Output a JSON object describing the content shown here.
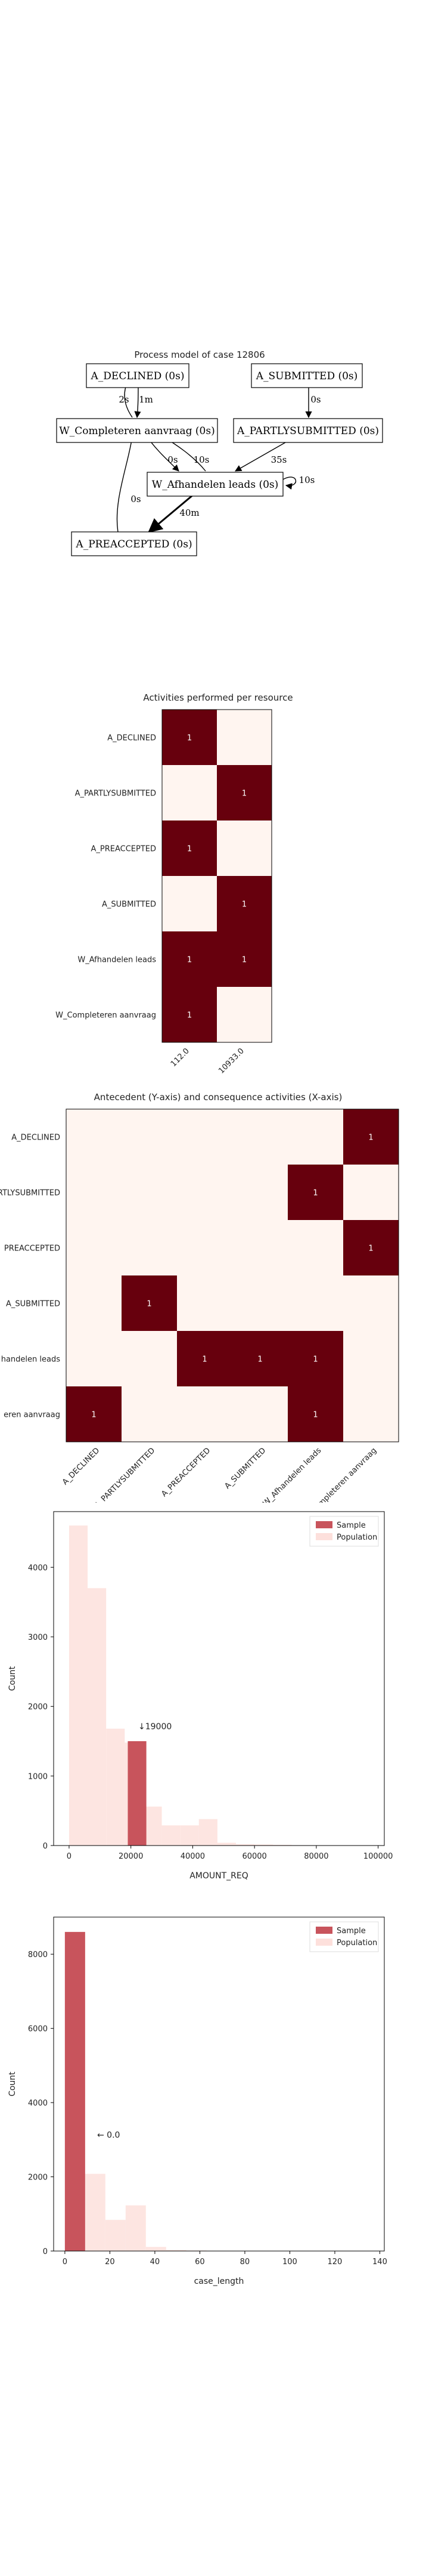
{
  "chart_data": [
    {
      "type": "process-graph",
      "title": "Process model of case 12806",
      "nodes": [
        {
          "id": "declined",
          "label": "A_DECLINED (0s)"
        },
        {
          "id": "submitted",
          "label": "A_SUBMITTED (0s)"
        },
        {
          "id": "completeren",
          "label": "W_Completeren aanvraag (0s)"
        },
        {
          "id": "partly",
          "label": "A_PARTLYSUBMITTED (0s)"
        },
        {
          "id": "afhandelen",
          "label": "W_Afhandelen leads (0s)"
        },
        {
          "id": "preaccepted",
          "label": "A_PREACCEPTED (0s)"
        }
      ],
      "edges": [
        {
          "from": "completeren",
          "to": "declined",
          "label": "2s"
        },
        {
          "from": "declined",
          "to": "completeren",
          "label": "1m"
        },
        {
          "from": "submitted",
          "to": "partly",
          "label": "0s"
        },
        {
          "from": "completeren",
          "to": "afhandelen",
          "label": "0s"
        },
        {
          "from": "afhandelen",
          "to": "completeren",
          "label": "10s"
        },
        {
          "from": "partly",
          "to": "afhandelen",
          "label": "35s"
        },
        {
          "from": "afhandelen",
          "to": "afhandelen",
          "label": "10s"
        },
        {
          "from": "preaccepted",
          "to": "completeren",
          "label": "0s"
        },
        {
          "from": "afhandelen",
          "to": "preaccepted",
          "label": "40m"
        }
      ]
    },
    {
      "type": "heatmap",
      "title": "Activities performed per resource",
      "rows": [
        "A_DECLINED",
        "A_PARTLYSUBMITTED",
        "A_PREACCEPTED",
        "A_SUBMITTED",
        "W_Afhandelen leads",
        "W_Completeren aanvraag"
      ],
      "cols": [
        "112.0",
        "10933.0"
      ],
      "values": [
        [
          1,
          0
        ],
        [
          0,
          1
        ],
        [
          1,
          0
        ],
        [
          0,
          1
        ],
        [
          1,
          1
        ],
        [
          1,
          0
        ]
      ]
    },
    {
      "type": "heatmap",
      "title": "Antecedent (Y-axis) and consequence activities (X-axis)",
      "rows": [
        "A_DECLINED",
        "A_PARTLYSUBMITTED",
        "A_PREACCEPTED",
        "A_SUBMITTED",
        "W_Afhandelen leads",
        "W_Completeren aanvraag"
      ],
      "row_labels_visible": [
        "A_DECLINED",
        "RTLYSUBMITTED",
        "PREACCEPTED",
        "A_SUBMITTED",
        "handelen leads",
        "eren aanvraag"
      ],
      "cols": [
        "A_DECLINED",
        "A_PARTLYSUBMITTED",
        "A_PREACCEPTED",
        "A_SUBMITTED",
        "W_Afhandelen leads",
        "W_Completeren aanvraag"
      ],
      "col_labels_visible": [
        "A_DECLINED",
        "A_PARTLYSUBMITTED",
        "A_PREACCEPTED",
        "A_SUBMITTED",
        "W_Afhandelen leads",
        "Completeren aanvraag"
      ],
      "values": [
        [
          0,
          0,
          0,
          0,
          0,
          1
        ],
        [
          0,
          0,
          0,
          0,
          1,
          0
        ],
        [
          0,
          0,
          0,
          0,
          0,
          1
        ],
        [
          0,
          1,
          0,
          0,
          0,
          0
        ],
        [
          0,
          0,
          1,
          1,
          1,
          0
        ],
        [
          1,
          0,
          0,
          0,
          1,
          0
        ]
      ]
    },
    {
      "type": "bar",
      "xlabel": "AMOUNT_REQ",
      "ylabel": "Count",
      "xlim": [
        -5000,
        102000
      ],
      "ylim": [
        0,
        4800
      ],
      "xticks": [
        "0",
        "20000",
        "40000",
        "60000",
        "80000",
        "100000"
      ],
      "xtick_values": [
        0,
        20000,
        40000,
        60000,
        80000,
        100000
      ],
      "yticks": [
        "0",
        "1000",
        "2000",
        "3000",
        "4000"
      ],
      "ytick_values": [
        0,
        1000,
        2000,
        3000,
        4000
      ],
      "legend": [
        "Sample",
        "Population"
      ],
      "legend_position": "top-right",
      "bin_width": 6000,
      "population": [
        {
          "x0": 0,
          "count": 4600
        },
        {
          "x0": 6000,
          "count": 3700
        },
        {
          "x0": 12000,
          "count": 1680
        },
        {
          "x0": 18000,
          "count": 1480
        },
        {
          "x0": 24000,
          "count": 560
        },
        {
          "x0": 30000,
          "count": 290
        },
        {
          "x0": 36000,
          "count": 290
        },
        {
          "x0": 42000,
          "count": 380
        },
        {
          "x0": 48000,
          "count": 40
        },
        {
          "x0": 54000,
          "count": 20
        },
        {
          "x0": 60000,
          "count": 15
        },
        {
          "x0": 66000,
          "count": 10
        },
        {
          "x0": 72000,
          "count": 5
        }
      ],
      "sample": [
        {
          "x0": 19000,
          "x1": 25000,
          "count": 1500
        }
      ],
      "annotation": {
        "text": "↓19000",
        "x": 19000
      }
    },
    {
      "type": "bar",
      "xlabel": "case_length",
      "ylabel": "Count",
      "xlim": [
        -5,
        142
      ],
      "ylim": [
        0,
        9000
      ],
      "xticks": [
        "0",
        "20",
        "40",
        "60",
        "80",
        "100",
        "120",
        "140"
      ],
      "xtick_values": [
        0,
        20,
        40,
        60,
        80,
        100,
        120,
        140
      ],
      "yticks": [
        "0",
        "2000",
        "4000",
        "6000",
        "8000"
      ],
      "ytick_values": [
        0,
        2000,
        4000,
        6000,
        8000
      ],
      "legend": [
        "Sample",
        "Population"
      ],
      "legend_position": "top-right",
      "population": [
        {
          "x0": 0,
          "x1": 9,
          "count": 8600
        },
        {
          "x0": 9,
          "x1": 18,
          "count": 2080
        },
        {
          "x0": 18,
          "x1": 27,
          "count": 840
        },
        {
          "x0": 27,
          "x1": 36,
          "count": 1230
        },
        {
          "x0": 36,
          "x1": 45,
          "count": 110
        },
        {
          "x0": 45,
          "x1": 54,
          "count": 30
        },
        {
          "x0": 54,
          "x1": 63,
          "count": 15
        }
      ],
      "sample": [
        {
          "x0": 0,
          "x1": 9,
          "count": 8600
        }
      ],
      "annotation": {
        "text": "← 0.0",
        "x": 0
      }
    }
  ]
}
